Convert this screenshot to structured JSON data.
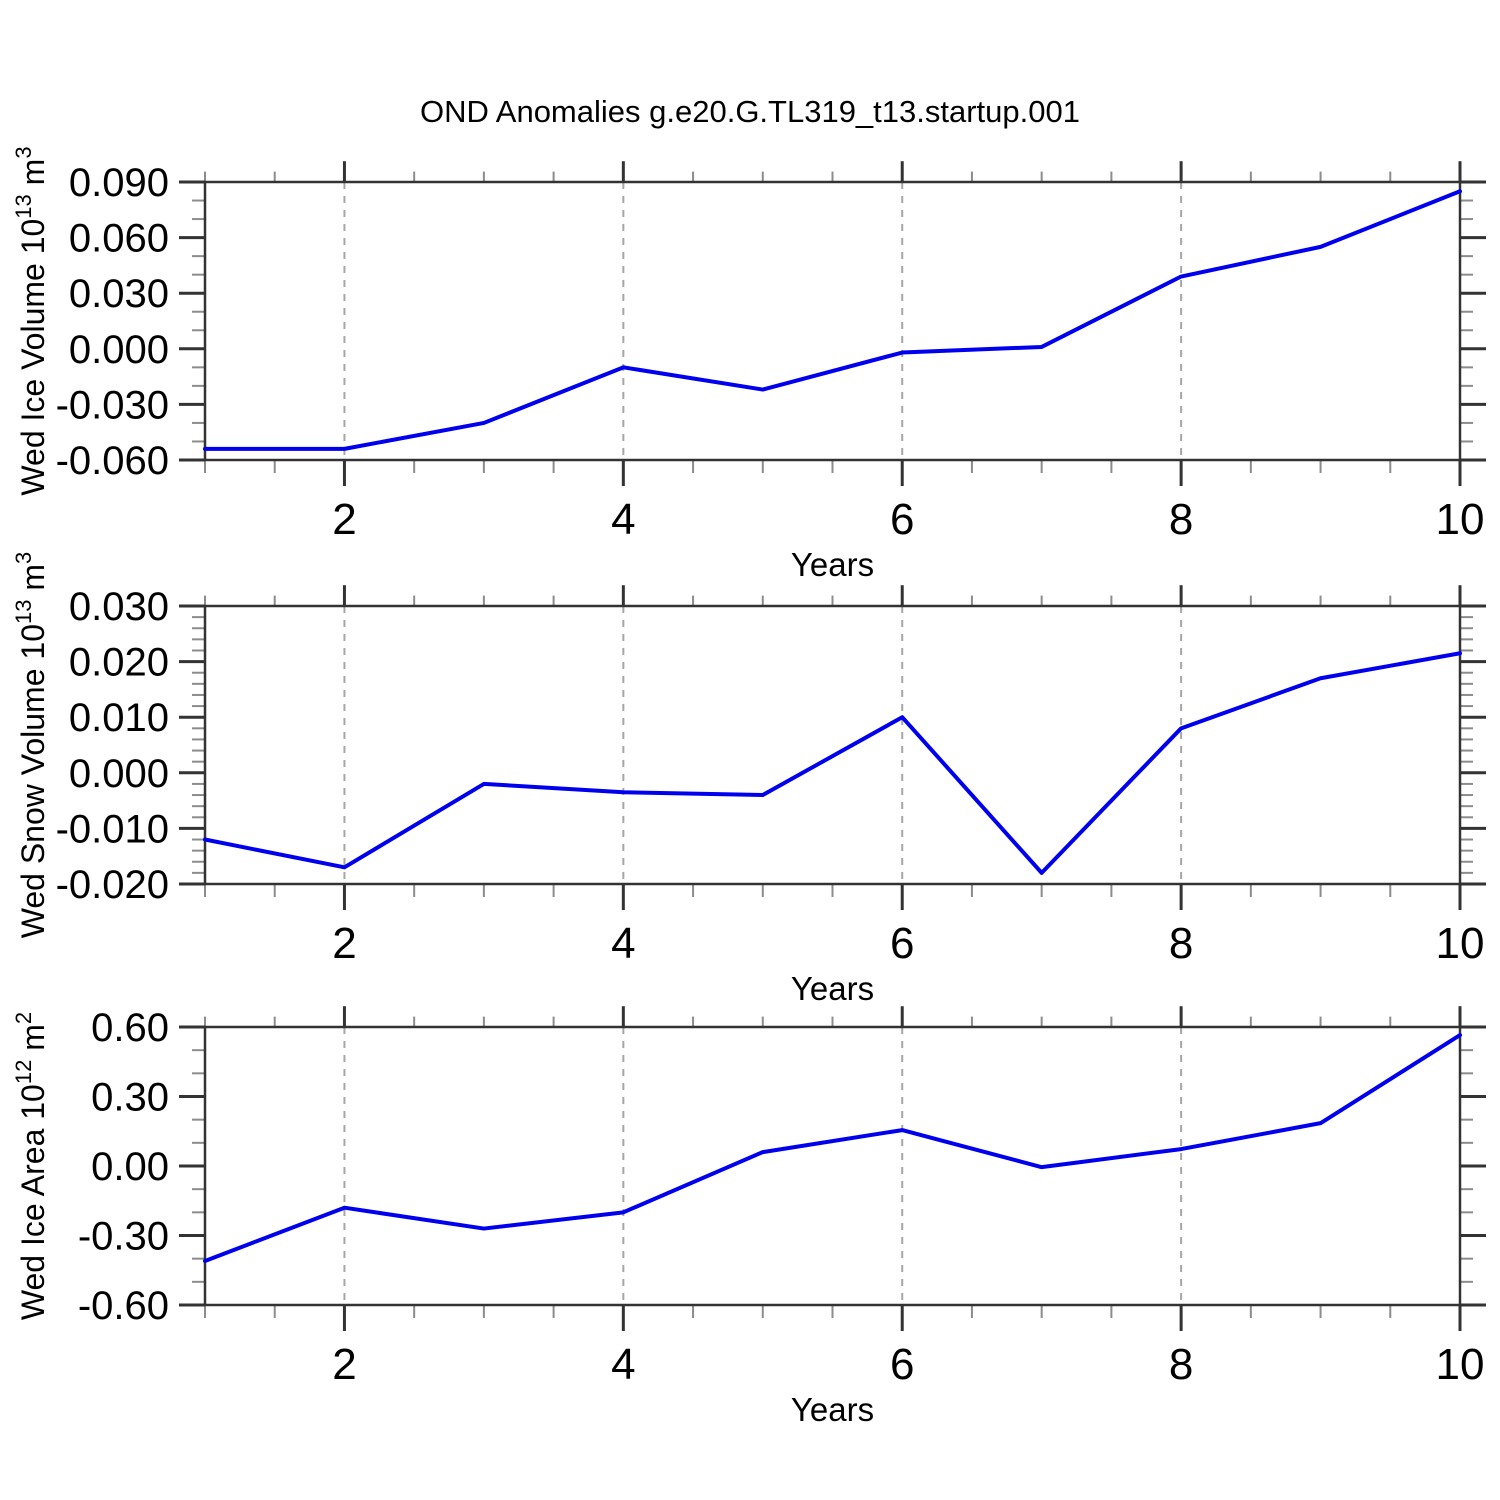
{
  "page": {
    "title": "OND Anomalies g.e20.G.TL319_t13.startup.001"
  },
  "style": {
    "line_color": "#0000EE",
    "grid_color": "#A6A6A6",
    "frame_color": "#333333",
    "major_tick_color": "#333333",
    "minor_tick_color": "#8C8C8C",
    "text_color": "#000000"
  },
  "chart_data": [
    {
      "type": "line",
      "ylabel": "Wed Ice Volume 10^13 m^3",
      "ylabel_rich": [
        {
          "text": "Wed Ice Volume 10",
          "sup": false
        },
        {
          "text": "13",
          "sup": true
        },
        {
          "text": " m",
          "sup": false
        },
        {
          "text": "3",
          "sup": true
        }
      ],
      "xlabel": "Years",
      "x": [
        1,
        2,
        3,
        4,
        5,
        6,
        7,
        8,
        9,
        10
      ],
      "values": [
        -0.054,
        -0.054,
        -0.04,
        -0.01,
        -0.022,
        -0.002,
        0.001,
        0.039,
        0.055,
        0.085
      ],
      "xlim": [
        1,
        10
      ],
      "ylim": [
        -0.06,
        0.09
      ],
      "xticks_major": [
        2,
        4,
        6,
        8,
        10
      ],
      "xtick_labels": [
        "2",
        "4",
        "6",
        "8",
        "10"
      ],
      "xminor_step": 0.5,
      "ytick_values": [
        0.09,
        0.06,
        0.03,
        0.0,
        -0.03,
        -0.06
      ],
      "ytick_labels": [
        "0.090",
        "0.060",
        "0.030",
        "0.000",
        "-0.030",
        "-0.060"
      ],
      "yminor_step": 0.01,
      "gridlines_x": [
        2,
        4,
        6,
        8
      ],
      "grid_dashed": true
    },
    {
      "type": "line",
      "ylabel": "Wed Snow Volume 10^13 m^3",
      "ylabel_rich": [
        {
          "text": "Wed Snow Volume 10",
          "sup": false
        },
        {
          "text": "13",
          "sup": true
        },
        {
          "text": " m",
          "sup": false
        },
        {
          "text": "3",
          "sup": true
        }
      ],
      "xlabel": "Years",
      "x": [
        1,
        2,
        3,
        4,
        5,
        6,
        7,
        8,
        9,
        10
      ],
      "values": [
        -0.012,
        -0.017,
        -0.002,
        -0.0035,
        -0.004,
        0.01,
        -0.018,
        0.008,
        0.017,
        0.0215
      ],
      "xlim": [
        1,
        10
      ],
      "ylim": [
        -0.02,
        0.03
      ],
      "xticks_major": [
        2,
        4,
        6,
        8,
        10
      ],
      "xtick_labels": [
        "2",
        "4",
        "6",
        "8",
        "10"
      ],
      "xminor_step": 0.5,
      "ytick_values": [
        0.03,
        0.02,
        0.01,
        0.0,
        -0.01,
        -0.02
      ],
      "ytick_labels": [
        "0.030",
        "0.020",
        "0.010",
        "0.000",
        "-0.010",
        "-0.020"
      ],
      "yminor_step": 0.002,
      "gridlines_x": [
        2,
        4,
        6,
        8
      ],
      "grid_dashed": true
    },
    {
      "type": "line",
      "ylabel": "Wed Ice Area 10^12 m^2",
      "ylabel_rich": [
        {
          "text": "Wed Ice Area 10",
          "sup": false
        },
        {
          "text": "12",
          "sup": true
        },
        {
          "text": " m",
          "sup": false
        },
        {
          "text": "2",
          "sup": true
        }
      ],
      "xlabel": "Years",
      "x": [
        1,
        2,
        3,
        4,
        5,
        6,
        7,
        8,
        9,
        10
      ],
      "values": [
        -0.41,
        -0.18,
        -0.27,
        -0.2,
        0.06,
        0.155,
        -0.005,
        0.073,
        0.185,
        0.565
      ],
      "xlim": [
        1,
        10
      ],
      "ylim": [
        -0.6,
        0.6
      ],
      "xticks_major": [
        2,
        4,
        6,
        8,
        10
      ],
      "xtick_labels": [
        "2",
        "4",
        "6",
        "8",
        "10"
      ],
      "xminor_step": 0.5,
      "ytick_values": [
        0.6,
        0.3,
        0.0,
        -0.3,
        -0.6
      ],
      "ytick_labels": [
        "0.60",
        "0.30",
        "0.00",
        "-0.30",
        "-0.60"
      ],
      "yminor_step": 0.1,
      "gridlines_x": [
        2,
        4,
        6,
        8
      ],
      "grid_dashed": true
    }
  ]
}
